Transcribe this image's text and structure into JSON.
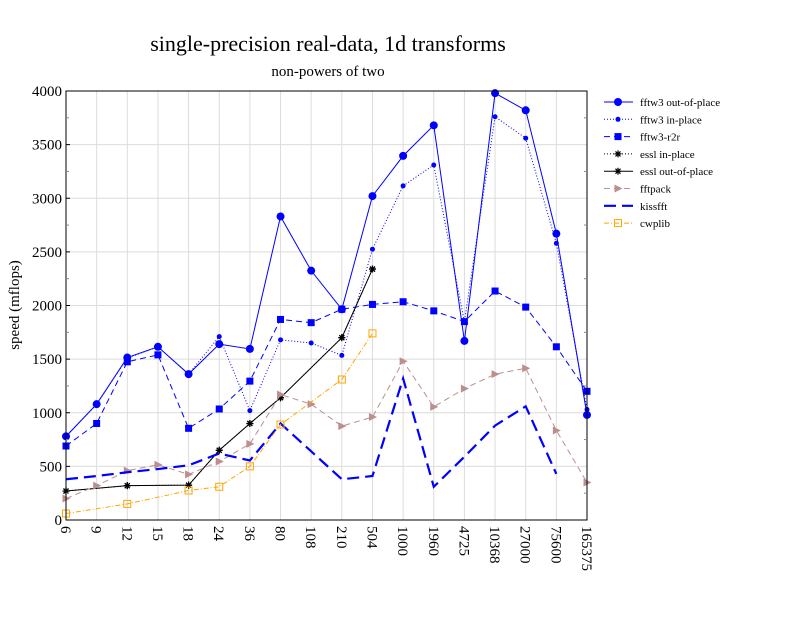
{
  "chart_data": {
    "type": "line",
    "title": "single-precision real-data, 1d transforms",
    "subtitle": "non-powers of two",
    "xlabel": "",
    "ylabel": "speed (mflops)",
    "ylim": [
      0,
      4000
    ],
    "yticks": [
      0,
      500,
      1000,
      1500,
      2000,
      2500,
      3000,
      3500,
      4000
    ],
    "grid": true,
    "legend_position": "right-outside",
    "categories": [
      "6",
      "9",
      "12",
      "15",
      "18",
      "24",
      "36",
      "80",
      "108",
      "210",
      "504",
      "1000",
      "1960",
      "4725",
      "10368",
      "27000",
      "75600",
      "165375"
    ],
    "series": [
      {
        "name": "fftw3 out-of-place",
        "color": "#0000ff",
        "dash": "",
        "marker": "circle-big",
        "values": [
          780,
          1080,
          1515,
          1615,
          1360,
          1640,
          1595,
          2830,
          2325,
          1965,
          3020,
          3395,
          3680,
          1670,
          3980,
          3820,
          2670,
          980
        ]
      },
      {
        "name": "fftw3 in-place",
        "color": "#0000ff",
        "dash": "1,2",
        "marker": "circle-small",
        "values": [
          780,
          1080,
          1510,
          1615,
          1360,
          1710,
          1020,
          1680,
          1650,
          1535,
          2525,
          3115,
          3310,
          1850,
          3760,
          3560,
          2580,
          1030
        ]
      },
      {
        "name": "fftw3-r2r",
        "color": "#0000ff",
        "dash": "6,4",
        "marker": "square",
        "values": [
          690,
          900,
          1475,
          1540,
          855,
          1035,
          1295,
          1870,
          1840,
          1965,
          2010,
          2035,
          1950,
          1850,
          2135,
          1985,
          1615,
          1200
        ]
      },
      {
        "name": "essl in-place",
        "color": "#000000",
        "dash": "1,2",
        "marker": "star",
        "values": [
          270,
          null,
          320,
          null,
          325,
          650,
          900,
          1140,
          null,
          1700,
          2340,
          null,
          null,
          null,
          null,
          null,
          null,
          null
        ]
      },
      {
        "name": "essl out-of-place",
        "color": "#000000",
        "dash": "",
        "marker": "star",
        "values": [
          270,
          null,
          320,
          null,
          325,
          650,
          900,
          1140,
          null,
          1700,
          2340,
          null,
          null,
          null,
          null,
          null,
          null,
          null
        ]
      },
      {
        "name": "fftpack",
        "color": "#bc8f8f",
        "dash": "6,4",
        "marker": "triangle",
        "values": [
          200,
          320,
          460,
          515,
          425,
          545,
          710,
          1170,
          1080,
          875,
          960,
          1480,
          1055,
          1225,
          1360,
          1415,
          835,
          350
        ]
      },
      {
        "name": "kissfft",
        "color": "#0000ff",
        "dash": "12,6",
        "marker": "none",
        "width": 2.2,
        "values": [
          380,
          410,
          445,
          475,
          510,
          620,
          555,
          900,
          640,
          380,
          410,
          1320,
          310,
          590,
          880,
          1060,
          430,
          null
        ]
      },
      {
        "name": "cwplib",
        "color": "#ffa500",
        "dash": "5,2,1,2",
        "marker": "open-square",
        "values": [
          60,
          null,
          150,
          null,
          275,
          310,
          500,
          890,
          null,
          1310,
          1740,
          null,
          null,
          null,
          null,
          null,
          null,
          null
        ]
      }
    ]
  }
}
